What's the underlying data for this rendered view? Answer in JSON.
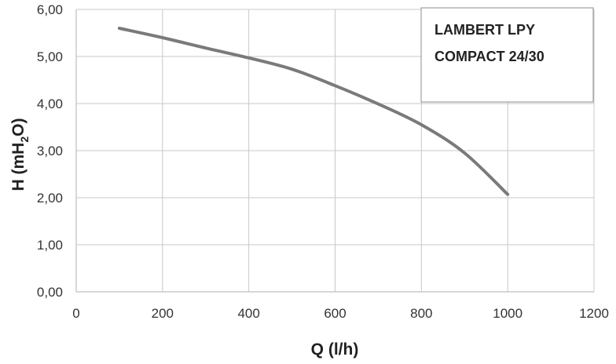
{
  "chart_data": {
    "type": "line",
    "title_lines": [
      "LAMBERT LPY",
      "COMPACT 24/30"
    ],
    "xlabel": "Q (l/h)",
    "ylabel": {
      "prefix": "H (mH",
      "subscript": "2",
      "suffix": "O)"
    },
    "xlim": [
      0,
      1200
    ],
    "ylim": [
      0,
      6
    ],
    "x_ticks": [
      0,
      200,
      400,
      600,
      800,
      1000,
      1200
    ],
    "x_tick_labels": [
      "0",
      "200",
      "400",
      "600",
      "800",
      "1000",
      "1200"
    ],
    "y_ticks": [
      0,
      1,
      2,
      3,
      4,
      5,
      6
    ],
    "y_tick_labels": [
      "0,00",
      "1,00",
      "2,00",
      "3,00",
      "4,00",
      "5,00",
      "6,00"
    ],
    "grid": true,
    "legend_placement": "top-right",
    "series": [
      {
        "color": "#7a7a7a",
        "x": [
          100,
          200,
          300,
          400,
          500,
          600,
          700,
          800,
          900,
          1000
        ],
        "y": [
          5.6,
          5.4,
          5.18,
          4.97,
          4.73,
          4.38,
          3.99,
          3.55,
          2.95,
          2.07
        ]
      }
    ],
    "colors": {
      "grid": "#c8c8c8",
      "axis": "#bfbfbf",
      "legend_border": "#8c8c8c"
    }
  }
}
